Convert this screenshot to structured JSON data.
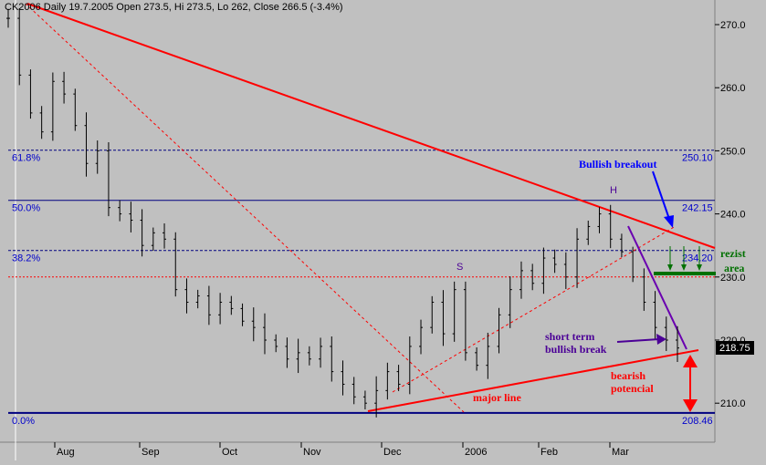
{
  "chart_data": {
    "type": "line",
    "title": "CK2006  Daily 19.7.2005 Open 273.5, Hi 273.5, Lo 262, Close 266.5 (-3.4%)",
    "ylim": [
      205,
      274
    ],
    "yticks": [
      "270.0",
      "260.0",
      "250.0",
      "240.0",
      "230.0",
      "220.0",
      "210.0"
    ],
    "xticks": [
      "Aug",
      "Sep",
      "Oct",
      "Nov",
      "Dec",
      "2006",
      "Feb",
      "Mar"
    ],
    "last_price": "218.75",
    "fib_levels": [
      {
        "label": "61.8%",
        "value": "250.10"
      },
      {
        "label": "50.0%",
        "value": "242.15"
      },
      {
        "label": "38.2%",
        "value": "234.20"
      },
      {
        "label": "0.0%",
        "value": "208.46"
      }
    ],
    "resistance_level": 230,
    "price_series": [
      271,
      262,
      256,
      253,
      261,
      259,
      254,
      248,
      250,
      241,
      240,
      239,
      235,
      237,
      236,
      228,
      226,
      227,
      224,
      226,
      225,
      223,
      222,
      220,
      219,
      217,
      218,
      217,
      219,
      215,
      213,
      211,
      210,
      212,
      215,
      213,
      219,
      222,
      226,
      221,
      228,
      218,
      216,
      219,
      224,
      228,
      231,
      229,
      233,
      232,
      230,
      236,
      238,
      240,
      236,
      234,
      230,
      226,
      222,
      220,
      218.75
    ],
    "annotations": {
      "bullish_breakout": "Bullish breakout",
      "rezist_line1": "rezist",
      "rezist_line2": "area",
      "short_term_line1": "short term",
      "short_term_line2": "bullish break",
      "bearish_line1": "bearish",
      "bearish_line2": "potencial",
      "major_line": "major line",
      "shoulder_mark": "S",
      "head_mark": "H"
    }
  }
}
